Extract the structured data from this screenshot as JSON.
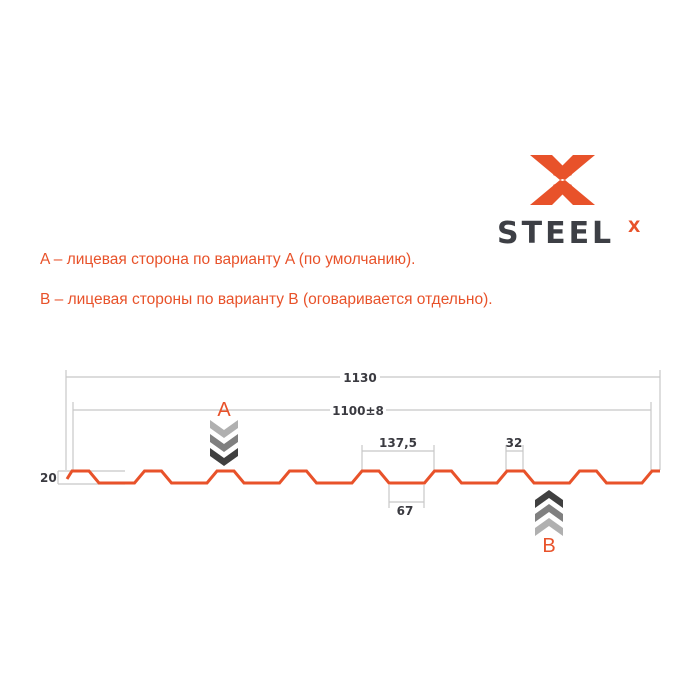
{
  "logo": {
    "text": "STEEL",
    "superscript": "X",
    "brand_color": "#e8522a",
    "text_color": "#3d3f45"
  },
  "notes": [
    "A – лицевая сторона по варианту A (по умолчанию).",
    "B – лицевая стороны по варианту B (оговаривается отдельно)."
  ],
  "dimensions": {
    "total_width": "1130",
    "useful_width": "1100±8",
    "pitch": "137,5",
    "top_flat": "32",
    "bottom_flat": "67",
    "height": "20"
  },
  "sides": {
    "a": "A",
    "b": "B"
  },
  "colors": {
    "profile": "#e8522a",
    "dimension_lines": "#c8c8c8",
    "chevron_light": "#b0b0b0",
    "chevron_mid": "#808080",
    "chevron_dark": "#404040"
  }
}
